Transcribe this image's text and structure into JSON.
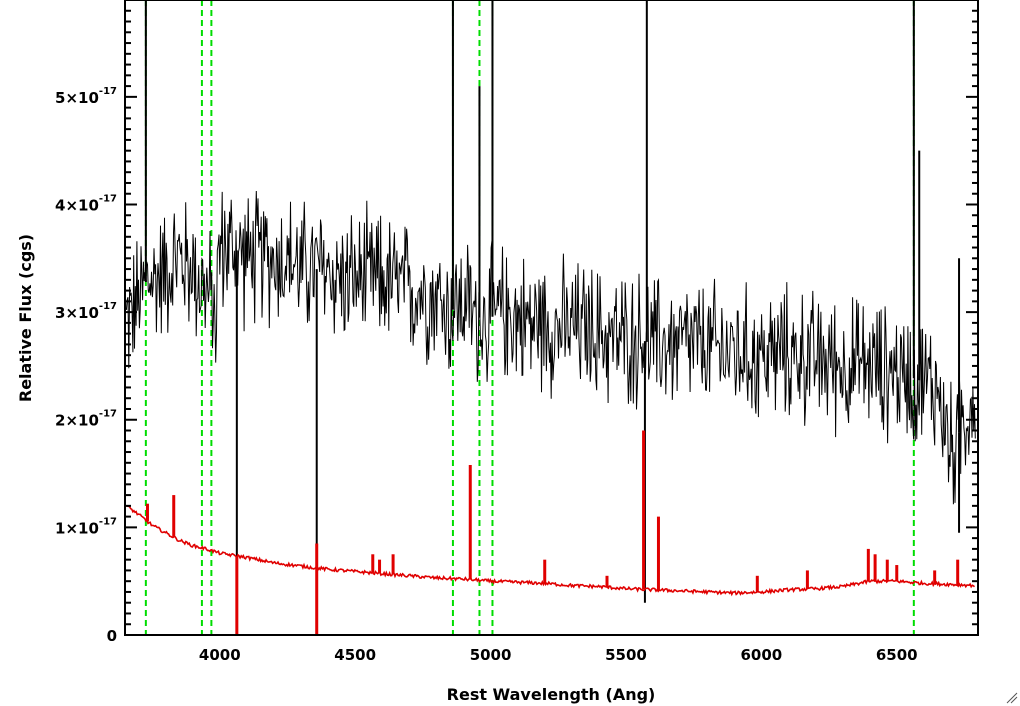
{
  "chart_data": {
    "type": "line",
    "xlabel": "Rest Wavelength (Ang)",
    "ylabel": "Relative Flux (cgs)",
    "xlim": [
      3650,
      6800
    ],
    "ylim": [
      0,
      5.9e-17
    ],
    "x_ticks": [
      {
        "value": 4000,
        "label": "4000"
      },
      {
        "value": 4500,
        "label": "4500"
      },
      {
        "value": 5000,
        "label": "5000"
      },
      {
        "value": 5500,
        "label": "5500"
      },
      {
        "value": 6000,
        "label": "6000"
      },
      {
        "value": 6500,
        "label": "6500"
      }
    ],
    "y_ticks": [
      {
        "value": 0,
        "mantissa": "0",
        "exponent": ""
      },
      {
        "value": 1e-17,
        "mantissa": "1×10",
        "exponent": "-17"
      },
      {
        "value": 2e-17,
        "mantissa": "2×10",
        "exponent": "-17"
      },
      {
        "value": 3e-17,
        "mantissa": "3×10",
        "exponent": "-17"
      },
      {
        "value": 4e-17,
        "mantissa": "4×10",
        "exponent": "-17"
      },
      {
        "value": 5e-17,
        "mantissa": "5×10",
        "exponent": "-17"
      }
    ],
    "grid": false,
    "reference_lines": {
      "color": "#00dd00",
      "style": "dashed",
      "x": [
        3727,
        3934,
        3969,
        4861,
        4959,
        5007,
        6563
      ]
    },
    "series": [
      {
        "role": "observed spectrum",
        "color": "#000000",
        "x": [
          3655,
          3700,
          3730,
          3760,
          3800,
          3850,
          3900,
          3950,
          3985,
          4000,
          4050,
          4100,
          4150,
          4200,
          4250,
          4300,
          4350,
          4400,
          4450,
          4500,
          4550,
          4600,
          4650,
          4700,
          4750,
          4800,
          4850,
          4900,
          4950,
          5000,
          5050,
          5100,
          5150,
          5200,
          5250,
          5300,
          5350,
          5400,
          5450,
          5500,
          5550,
          5600,
          5650,
          5700,
          5750,
          5800,
          5850,
          5900,
          5950,
          6000,
          6050,
          6100,
          6150,
          6200,
          6250,
          6300,
          6350,
          6400,
          6450,
          6500,
          6550,
          6600,
          6650,
          6700,
          6750,
          6790
        ],
        "y": [
          2.9e-17,
          3.1e-17,
          3.3e-17,
          3.3e-17,
          3.4e-17,
          3.5e-17,
          3.4e-17,
          3.2e-17,
          3e-17,
          3.6e-17,
          3.6e-17,
          3.5e-17,
          3.5e-17,
          3.5e-17,
          3.5e-17,
          3.4e-17,
          3.4e-17,
          3.4e-17,
          3.3e-17,
          3.3e-17,
          3.3e-17,
          3.3e-17,
          3.25e-17,
          3.2e-17,
          3.2e-17,
          3.15e-17,
          3e-17,
          3.1e-17,
          2.95e-17,
          2.95e-17,
          3e-17,
          2.95e-17,
          2.9e-17,
          2.9e-17,
          2.85e-17,
          2.85e-17,
          2.85e-17,
          2.8e-17,
          2.75e-17,
          2.75e-17,
          2.75e-17,
          2.7e-17,
          2.7e-17,
          2.7e-17,
          2.7e-17,
          2.65e-17,
          2.65e-17,
          2.65e-17,
          2.6e-17,
          2.6e-17,
          2.6e-17,
          2.6e-17,
          2.6e-17,
          2.55e-17,
          2.55e-17,
          2.5e-17,
          2.5e-17,
          2.5e-17,
          2.45e-17,
          2.45e-17,
          2.4e-17,
          2.35e-17,
          2.3e-17,
          1.7e-17,
          2e-17,
          2.3e-17
        ],
        "noise": 5.5e-18,
        "spikes": [
          {
            "x": 3727,
            "y": 5.9e-17
          },
          {
            "x": 4063,
            "y": 0.0
          },
          {
            "x": 4358,
            "y": 0.0
          },
          {
            "x": 4861,
            "y": 5.9e-17
          },
          {
            "x": 4959,
            "y": 5.1e-17
          },
          {
            "x": 5007,
            "y": 5.9e-17
          },
          {
            "x": 5577,
            "y": 5.9e-17
          },
          {
            "x": 5570,
            "y": 3e-18
          },
          {
            "x": 6563,
            "y": 5.9e-17
          },
          {
            "x": 6583,
            "y": 4.5e-17
          },
          {
            "x": 6730,
            "y": 3.5e-17
          },
          {
            "x": 6730,
            "y": 9.5e-18
          }
        ]
      },
      {
        "role": "error spectrum",
        "color": "#e00000",
        "x": [
          3655,
          3700,
          3750,
          3800,
          3850,
          3900,
          3950,
          4000,
          4100,
          4200,
          4300,
          4400,
          4500,
          4600,
          4700,
          4800,
          4900,
          5000,
          5100,
          5200,
          5300,
          5400,
          5500,
          5600,
          5700,
          5800,
          5900,
          6000,
          6100,
          6200,
          6300,
          6400,
          6500,
          6600,
          6700,
          6790
        ],
        "y": [
          1.2e-17,
          1.12e-17,
          1.02e-17,
          9.5e-18,
          8.8e-18,
          8.3e-18,
          8e-18,
          7.6e-18,
          7.2e-18,
          6.7e-18,
          6.4e-18,
          6.1e-18,
          5.9e-18,
          5.7e-18,
          5.5e-18,
          5.3e-18,
          5.2e-18,
          5e-18,
          4.9e-18,
          4.8e-18,
          4.6e-18,
          4.5e-18,
          4.3e-18,
          4.2e-18,
          4.1e-18,
          4e-18,
          3.9e-18,
          4e-18,
          4.2e-18,
          4.3e-18,
          4.5e-18,
          5e-18,
          5e-18,
          4.8e-18,
          4.7e-18,
          4.6e-18
        ],
        "spikes": [
          {
            "x": 3733,
            "y": 1.22e-17
          },
          {
            "x": 3830,
            "y": 1.3e-17
          },
          {
            "x": 4063,
            "y": 0.0
          },
          {
            "x": 4358,
            "y": 0.0
          },
          {
            "x": 4358,
            "y": 8.5e-18
          },
          {
            "x": 4565,
            "y": 7.5e-18
          },
          {
            "x": 4590,
            "y": 7e-18
          },
          {
            "x": 4640,
            "y": 7.5e-18
          },
          {
            "x": 4925,
            "y": 1.58e-17
          },
          {
            "x": 5200,
            "y": 7e-18
          },
          {
            "x": 5430,
            "y": 5.5e-18
          },
          {
            "x": 5565,
            "y": 1.9e-17
          },
          {
            "x": 5620,
            "y": 1.1e-17
          },
          {
            "x": 5985,
            "y": 5.5e-18
          },
          {
            "x": 6170,
            "y": 6e-18
          },
          {
            "x": 6395,
            "y": 8e-18
          },
          {
            "x": 6420,
            "y": 7.5e-18
          },
          {
            "x": 6465,
            "y": 7e-18
          },
          {
            "x": 6500,
            "y": 6.5e-18
          },
          {
            "x": 6640,
            "y": 6e-18
          },
          {
            "x": 6725,
            "y": 7e-18
          }
        ]
      }
    ]
  }
}
